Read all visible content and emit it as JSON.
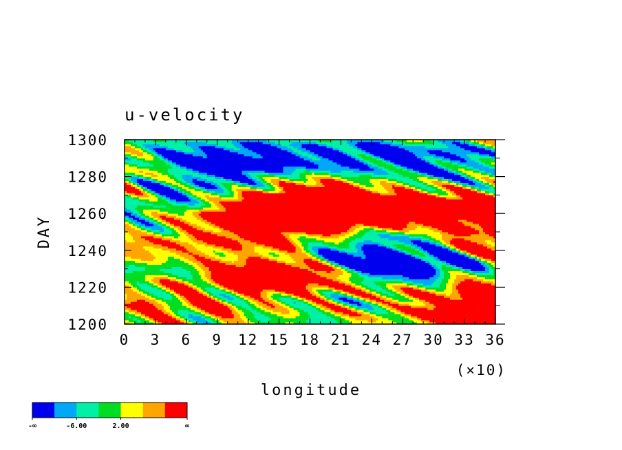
{
  "chart_data": {
    "type": "heatmap",
    "title": "u-velocity",
    "xlabel": "longitude",
    "ylabel": "DAY",
    "x_multiplier_label": "(×10)",
    "x_ticks": [
      "0",
      "3",
      "6",
      "9",
      "12",
      "15",
      "18",
      "21",
      "24",
      "27",
      "30",
      "33",
      "36"
    ],
    "y_ticks": [
      "1200",
      "1220",
      "1240",
      "1260",
      "1280",
      "1300"
    ],
    "xlim": [
      0,
      360
    ],
    "ylim": [
      1200,
      1300
    ],
    "colorbar": {
      "colors": [
        "#0000ee",
        "#00a8f5",
        "#00f0a8",
        "#00dd22",
        "#ffff00",
        "#ffa500",
        "#ff0000"
      ],
      "labels": [
        "-∞",
        "-6.00",
        "2.00",
        "∞"
      ]
    },
    "hotspots": [
      {
        "x": 160,
        "y": 1228,
        "r": 0.9
      },
      {
        "x": 165,
        "y": 1232,
        "r": 0.8
      },
      {
        "x": 150,
        "y": 1254,
        "r": 0.8
      },
      {
        "x": 170,
        "y": 1268,
        "r": 0.9
      },
      {
        "x": 180,
        "y": 1262,
        "r": 0.7
      },
      {
        "x": 185,
        "y": 1285,
        "r": 0.7
      },
      {
        "x": 335,
        "y": 1262,
        "r": 0.8
      },
      {
        "x": 350,
        "y": 1244,
        "r": 0.7
      },
      {
        "x": 5,
        "y": 1282,
        "r": 0.7
      },
      {
        "x": 10,
        "y": 1237,
        "r": 0.6
      },
      {
        "x": 350,
        "y": 1205,
        "r": 0.6
      },
      {
        "x": 355,
        "y": 1222,
        "r": 0.5
      },
      {
        "x": 120,
        "y": 1222,
        "r": 0.5
      },
      {
        "x": 250,
        "y": 1262,
        "r": 0.5
      },
      {
        "x": 90,
        "y": 1248,
        "r": 0.4
      },
      {
        "x": 60,
        "y": 1213,
        "r": 0.4
      }
    ],
    "coldspots": [
      {
        "x": 230,
        "y": 1236,
        "r": 1.0
      },
      {
        "x": 265,
        "y": 1230,
        "r": 0.9
      },
      {
        "x": 40,
        "y": 1232,
        "r": 0.8
      },
      {
        "x": 80,
        "y": 1290,
        "r": 0.8
      },
      {
        "x": 95,
        "y": 1280,
        "r": 0.7
      },
      {
        "x": 60,
        "y": 1268,
        "r": 0.6
      },
      {
        "x": 270,
        "y": 1250,
        "r": 0.6
      },
      {
        "x": 100,
        "y": 1218,
        "r": 0.6
      },
      {
        "x": 280,
        "y": 1292,
        "r": 0.5
      },
      {
        "x": 210,
        "y": 1288,
        "r": 0.5
      },
      {
        "x": 40,
        "y": 1250,
        "r": 0.5
      },
      {
        "x": 300,
        "y": 1275,
        "r": 0.4
      }
    ]
  }
}
